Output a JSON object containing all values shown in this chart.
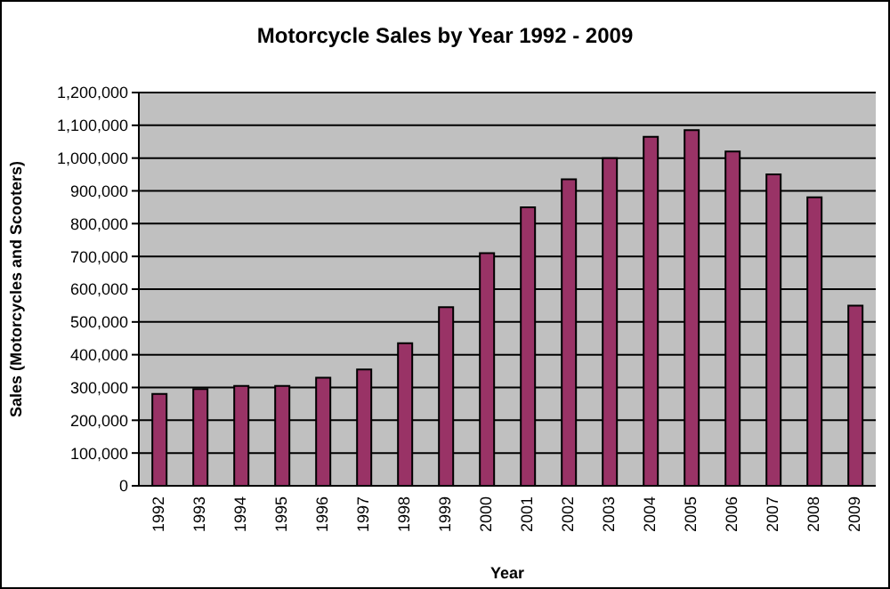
{
  "chart_data": {
    "type": "bar",
    "title": "Motorcycle Sales by Year 1992 - 2009",
    "xlabel": "Year",
    "ylabel": "Sales (Motorcycles and Scooters)",
    "categories": [
      "1992",
      "1993",
      "1994",
      "1995",
      "1996",
      "1997",
      "1998",
      "1999",
      "2000",
      "2001",
      "2002",
      "2003",
      "2004",
      "2005",
      "2006",
      "2007",
      "2008",
      "2009"
    ],
    "values": [
      280000,
      295000,
      305000,
      305000,
      330000,
      355000,
      435000,
      545000,
      710000,
      850000,
      935000,
      1000000,
      1065000,
      1085000,
      1020000,
      950000,
      880000,
      550000
    ],
    "color": "#993366",
    "ylim": [
      0,
      1200000
    ],
    "yticks": [
      0,
      {
        "value": 100000,
        "label": "100,000"
      },
      {
        "value": 200000,
        "label": "200,000"
      },
      {
        "value": 300000,
        "label": "300,000"
      },
      {
        "value": 400000,
        "label": "400,000"
      },
      {
        "value": 500000,
        "label": "500,000"
      },
      {
        "value": 600000,
        "label": "600,000"
      },
      {
        "value": 700000,
        "label": "700,000"
      },
      {
        "value": 800000,
        "label": "800,000"
      },
      {
        "value": 900000,
        "label": "900,000"
      },
      {
        "value": 1000000,
        "label": "1,000,000"
      },
      {
        "value": 1100000,
        "label": "1,100,000"
      },
      {
        "value": 1200000,
        "label": "1,200,000"
      }
    ],
    "grid": "y",
    "legend": false
  }
}
